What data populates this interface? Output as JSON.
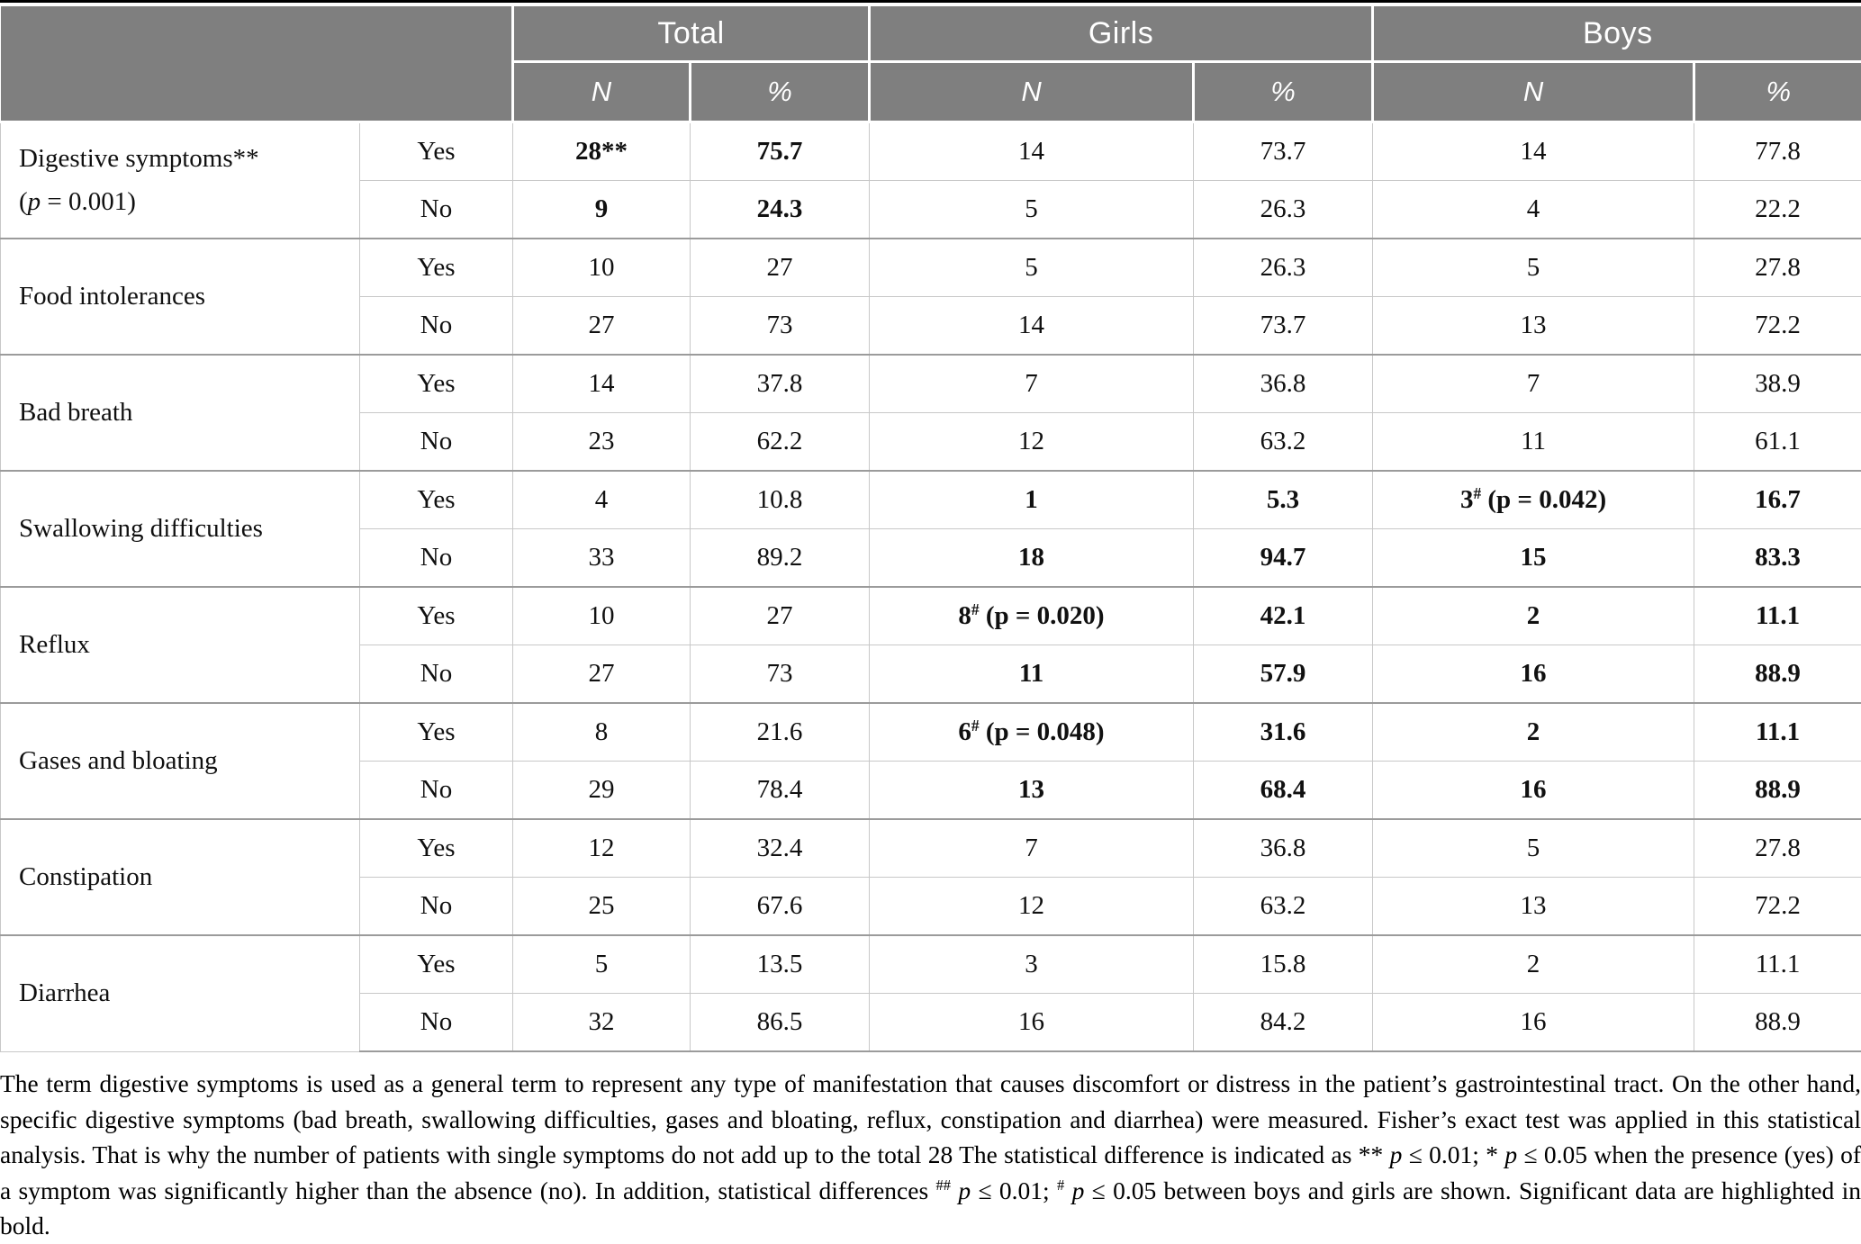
{
  "header": {
    "groups": [
      "Total",
      "Girls",
      "Boys"
    ],
    "sub_n": "N",
    "sub_pct": "%"
  },
  "groups": [
    {
      "symptom": "Digestive symptoms**",
      "symptom_note": [
        {
          "t": "(",
          "s": ""
        },
        {
          "t": "p",
          "s": "i"
        },
        {
          "t": " = 0.001)",
          "s": ""
        }
      ],
      "rows": [
        {
          "label": "Yes",
          "total_n": "28**",
          "total_pct": "75.7",
          "girls_n": "14",
          "girls_pct": "73.7",
          "boys_n": "14",
          "boys_pct": "77.8"
        },
        {
          "label": "No",
          "total_n": "9",
          "total_pct": "24.3",
          "girls_n": "5",
          "girls_pct": "26.3",
          "boys_n": "4",
          "boys_pct": "22.2"
        }
      ]
    },
    {
      "symptom": "Food intolerances",
      "rows": [
        {
          "label": "Yes",
          "total_n": "10",
          "total_pct": "27",
          "girls_n": "5",
          "girls_pct": "26.3",
          "boys_n": "5",
          "boys_pct": "27.8"
        },
        {
          "label": "No",
          "total_n": "27",
          "total_pct": "73",
          "girls_n": "14",
          "girls_pct": "73.7",
          "boys_n": "13",
          "boys_pct": "72.2"
        }
      ]
    },
    {
      "symptom": "Bad breath",
      "rows": [
        {
          "label": "Yes",
          "total_n": "14",
          "total_pct": "37.8",
          "girls_n": "7",
          "girls_pct": "36.8",
          "boys_n": "7",
          "boys_pct": "38.9"
        },
        {
          "label": "No",
          "total_n": "23",
          "total_pct": "62.2",
          "girls_n": "12",
          "girls_pct": "63.2",
          "boys_n": "11",
          "boys_pct": "61.1"
        }
      ]
    },
    {
      "symptom": "Swallowing difficulties",
      "rows": [
        {
          "label": "Yes",
          "total_n": "4",
          "total_pct": "10.8",
          "girls_n": "1",
          "girls_pct": "5.3",
          "boys_n": [
            {
              "t": "3",
              "s": ""
            },
            {
              "t": "#",
              "s": "sup"
            },
            {
              "t": " (p = 0.042)",
              "s": ""
            }
          ],
          "boys_pct": "16.7"
        },
        {
          "label": "No",
          "total_n": "33",
          "total_pct": "89.2",
          "girls_n": "18",
          "girls_pct": "94.7",
          "boys_n": "15",
          "boys_pct": "83.3"
        }
      ]
    },
    {
      "symptom": "Reflux",
      "rows": [
        {
          "label": "Yes",
          "total_n": "10",
          "total_pct": "27",
          "girls_n": [
            {
              "t": "8",
              "s": ""
            },
            {
              "t": "#",
              "s": "sup"
            },
            {
              "t": " (p = 0.020)",
              "s": ""
            }
          ],
          "girls_pct": "42.1",
          "boys_n": "2",
          "boys_pct": "11.1"
        },
        {
          "label": "No",
          "total_n": "27",
          "total_pct": "73",
          "girls_n": "11",
          "girls_pct": "57.9",
          "boys_n": "16",
          "boys_pct": "88.9"
        }
      ]
    },
    {
      "symptom": "Gases and bloating",
      "rows": [
        {
          "label": "Yes",
          "total_n": "8",
          "total_pct": "21.6",
          "girls_n": [
            {
              "t": "6",
              "s": ""
            },
            {
              "t": "#",
              "s": "sup"
            },
            {
              "t": " (p = 0.048)",
              "s": ""
            }
          ],
          "girls_pct": "31.6",
          "boys_n": "2",
          "boys_pct": "11.1"
        },
        {
          "label": "No",
          "total_n": "29",
          "total_pct": "78.4",
          "girls_n": "13",
          "girls_pct": "68.4",
          "boys_n": "16",
          "boys_pct": "88.9"
        }
      ]
    },
    {
      "symptom": "Constipation",
      "rows": [
        {
          "label": "Yes",
          "total_n": "12",
          "total_pct": "32.4",
          "girls_n": "7",
          "girls_pct": "36.8",
          "boys_n": "5",
          "boys_pct": "27.8"
        },
        {
          "label": "No",
          "total_n": "25",
          "total_pct": "67.6",
          "girls_n": "12",
          "girls_pct": "63.2",
          "boys_n": "13",
          "boys_pct": "72.2"
        }
      ]
    },
    {
      "symptom": "Diarrhea",
      "rows": [
        {
          "label": "Yes",
          "total_n": "5",
          "total_pct": "13.5",
          "girls_n": "3",
          "girls_pct": "15.8",
          "boys_n": "2",
          "boys_pct": "11.1"
        },
        {
          "label": "No",
          "total_n": "32",
          "total_pct": "86.5",
          "girls_n": "16",
          "girls_pct": "84.2",
          "boys_n": "16",
          "boys_pct": "88.9"
        }
      ]
    }
  ],
  "footnote": {
    "segments": [
      {
        "t": "The term digestive symptoms is used as a general term to represent any type of manifestation that causes discomfort or distress in the patient’s gastrointestinal tract. On the other hand, specific digestive symptoms (bad breath, swallowing difficulties, gases and bloating, reflux, constipation and diarrhea) were measured. Fisher’s exact test was applied in this statistical analysis. That is why the number of patients with single symptoms do not add up to the total 28 The statistical difference is indicated as ** ",
        "s": ""
      },
      {
        "t": "p",
        "s": "i"
      },
      {
        "t": " ≤ 0.01; * ",
        "s": ""
      },
      {
        "t": "p",
        "s": "i"
      },
      {
        "t": " ≤ 0.05 when the presence (yes) of a symptom was significantly higher than the absence (no). In addition, statistical differences ",
        "s": ""
      },
      {
        "t": "##",
        "s": "sup"
      },
      {
        "t": " ",
        "s": ""
      },
      {
        "t": "p",
        "s": "i"
      },
      {
        "t": " ≤ 0.01; ",
        "s": ""
      },
      {
        "t": "#",
        "s": "sup"
      },
      {
        "t": " ",
        "s": ""
      },
      {
        "t": "p",
        "s": "i"
      },
      {
        "t": " ≤ 0.05 between boys and girls are shown. Significant data are highlighted in bold.",
        "s": ""
      }
    ]
  },
  "colors": {
    "header_bg": "#7f7f7f",
    "header_text": "#ffffff",
    "inner_border": "#c8c8c8",
    "group_border": "#9b9b9b",
    "top_rule": "#000000"
  }
}
